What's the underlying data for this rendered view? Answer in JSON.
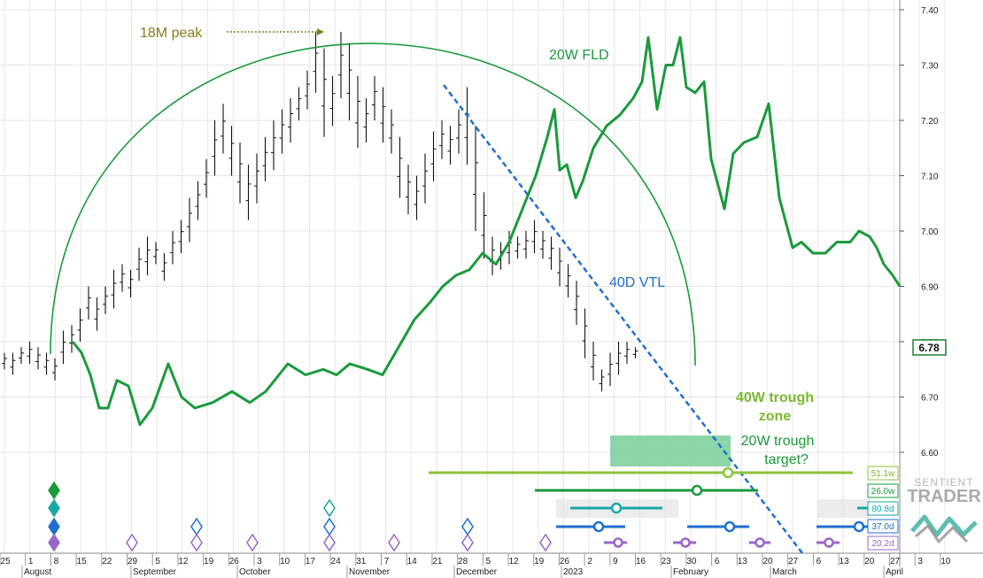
{
  "chart_data": {
    "type": "ohlc",
    "y_ticks": [
      "7.40",
      "7.30",
      "7.20",
      "7.10",
      "7.00",
      "6.90",
      "6.80",
      "6.70",
      "6.60"
    ],
    "ylim": [
      6.475,
      7.42
    ],
    "last_price_label": "6.78",
    "last_price": 6.78,
    "x_day_labels": [
      "25",
      "1",
      "8",
      "15",
      "22",
      "29",
      "5",
      "12",
      "19",
      "26",
      "3",
      "10",
      "17",
      "24",
      "31",
      "7",
      "14",
      "21",
      "28",
      "5",
      "12",
      "19",
      "26",
      "2",
      "9",
      "16",
      "23",
      "30",
      "6",
      "13",
      "20",
      "27",
      "6",
      "13",
      "20",
      "27",
      "3",
      "10"
    ],
    "months": [
      "August",
      "September",
      "October",
      "November",
      "December",
      "2023",
      "February",
      "March",
      "April"
    ],
    "price_bars": [
      [
        6.78,
        6.75
      ],
      [
        6.78,
        6.74
      ],
      [
        6.79,
        6.76
      ],
      [
        6.8,
        6.76
      ],
      [
        6.79,
        6.75
      ],
      [
        6.78,
        6.74
      ],
      [
        6.77,
        6.73
      ],
      [
        6.82,
        6.76
      ],
      [
        6.83,
        6.78
      ],
      [
        6.86,
        6.8
      ],
      [
        6.9,
        6.84
      ],
      [
        6.88,
        6.82
      ],
      [
        6.9,
        6.85
      ],
      [
        6.93,
        6.86
      ],
      [
        6.94,
        6.89
      ],
      [
        6.93,
        6.88
      ],
      [
        6.97,
        6.91
      ],
      [
        6.99,
        6.92
      ],
      [
        6.98,
        6.94
      ],
      [
        6.96,
        6.91
      ],
      [
        7.0,
        6.94
      ],
      [
        7.02,
        6.96
      ],
      [
        7.06,
        6.98
      ],
      [
        7.09,
        7.02
      ],
      [
        7.13,
        7.06
      ],
      [
        7.2,
        7.1
      ],
      [
        7.23,
        7.14
      ],
      [
        7.19,
        7.1
      ],
      [
        7.16,
        7.05
      ],
      [
        7.12,
        7.02
      ],
      [
        7.14,
        7.05
      ],
      [
        7.17,
        7.09
      ],
      [
        7.2,
        7.11
      ],
      [
        7.22,
        7.14
      ],
      [
        7.24,
        7.16
      ],
      [
        7.26,
        7.2
      ],
      [
        7.29,
        7.22
      ],
      [
        7.36,
        7.25
      ],
      [
        7.33,
        7.17
      ],
      [
        7.28,
        7.19
      ],
      [
        7.36,
        7.24
      ],
      [
        7.34,
        7.2
      ],
      [
        7.28,
        7.15
      ],
      [
        7.24,
        7.16
      ],
      [
        7.28,
        7.2
      ],
      [
        7.26,
        7.16
      ],
      [
        7.22,
        7.14
      ],
      [
        7.17,
        7.06
      ],
      [
        7.12,
        7.03
      ],
      [
        7.1,
        7.02
      ],
      [
        7.14,
        7.05
      ],
      [
        7.18,
        7.09
      ],
      [
        7.2,
        7.13
      ],
      [
        7.19,
        7.12
      ],
      [
        7.22,
        7.14
      ],
      [
        7.26,
        7.12
      ],
      [
        7.19,
        7.0
      ],
      [
        7.07,
        6.95
      ],
      [
        6.99,
        6.92
      ],
      [
        6.98,
        6.93
      ],
      [
        7.0,
        6.94
      ],
      [
        6.99,
        6.95
      ],
      [
        7.0,
        6.95
      ],
      [
        7.02,
        6.96
      ],
      [
        7.0,
        6.95
      ],
      [
        6.99,
        6.93
      ],
      [
        6.97,
        6.9
      ],
      [
        6.94,
        6.88
      ],
      [
        6.91,
        6.83
      ],
      [
        6.86,
        6.77
      ],
      [
        6.8,
        6.73
      ],
      [
        6.75,
        6.71
      ],
      [
        6.78,
        6.72
      ],
      [
        6.8,
        6.74
      ],
      [
        6.8,
        6.76
      ],
      [
        6.79,
        6.77
      ]
    ],
    "fld_20w": [
      [
        82,
        6.8
      ],
      [
        92,
        6.78
      ],
      [
        102,
        6.74
      ],
      [
        112,
        6.68
      ],
      [
        122,
        6.68
      ],
      [
        132,
        6.73
      ],
      [
        145,
        6.72
      ],
      [
        158,
        6.65
      ],
      [
        172,
        6.68
      ],
      [
        190,
        6.76
      ],
      [
        205,
        6.7
      ],
      [
        220,
        6.68
      ],
      [
        240,
        6.69
      ],
      [
        262,
        6.71
      ],
      [
        282,
        6.69
      ],
      [
        300,
        6.71
      ],
      [
        325,
        6.76
      ],
      [
        345,
        6.74
      ],
      [
        365,
        6.75
      ],
      [
        380,
        6.74
      ],
      [
        395,
        6.76
      ],
      [
        415,
        6.75
      ],
      [
        432,
        6.74
      ],
      [
        450,
        6.79
      ],
      [
        468,
        6.84
      ],
      [
        485,
        6.87
      ],
      [
        500,
        6.9
      ],
      [
        515,
        6.92
      ],
      [
        530,
        6.93
      ],
      [
        545,
        6.96
      ],
      [
        560,
        6.94
      ],
      [
        575,
        6.98
      ],
      [
        590,
        7.04
      ],
      [
        605,
        7.1
      ],
      [
        618,
        7.17
      ],
      [
        626,
        7.22
      ],
      [
        632,
        7.11
      ],
      [
        640,
        7.12
      ],
      [
        650,
        7.06
      ],
      [
        658,
        7.09
      ],
      [
        670,
        7.15
      ],
      [
        685,
        7.19
      ],
      [
        700,
        7.21
      ],
      [
        715,
        7.24
      ],
      [
        725,
        7.27
      ],
      [
        732,
        7.35
      ],
      [
        742,
        7.22
      ],
      [
        752,
        7.3
      ],
      [
        760,
        7.3
      ],
      [
        768,
        7.35
      ],
      [
        775,
        7.26
      ],
      [
        785,
        7.25
      ],
      [
        795,
        7.27
      ],
      [
        803,
        7.13
      ],
      [
        818,
        7.04
      ],
      [
        828,
        7.14
      ],
      [
        840,
        7.16
      ],
      [
        855,
        7.17
      ],
      [
        868,
        7.23
      ],
      [
        880,
        7.06
      ],
      [
        895,
        6.97
      ],
      [
        905,
        6.98
      ],
      [
        918,
        6.96
      ],
      [
        932,
        6.96
      ],
      [
        945,
        6.98
      ],
      [
        960,
        6.98
      ],
      [
        970,
        7.0
      ],
      [
        982,
        6.99
      ],
      [
        990,
        6.97
      ],
      [
        998,
        6.94
      ],
      [
        1008,
        6.92
      ],
      [
        1016,
        6.9
      ]
    ],
    "annotations": {
      "peak_18m": "18M peak",
      "fld_20w": "20W FLD",
      "vtl_40d": "40D VTL",
      "trough_40w_1": "40W trough",
      "trough_40w_2": "zone",
      "target_20w_1": "20W trough",
      "target_20w_2": "target?"
    },
    "cycle_labels": [
      "51.1w",
      "26.0w",
      "80.8d",
      "37.0d",
      "20.2d"
    ],
    "brand_1": "SENTIENT",
    "brand_2": "TRADER",
    "colors": {
      "fld": "#1a9a3c",
      "arc": "#1a9a3c",
      "vtl": "#1f6fd0",
      "peak_ann": "#8a7a1a",
      "trough_zone": "#7fd0a0",
      "cyc_51": "#8cc43c",
      "cyc_26": "#1a9a3c",
      "cyc_80": "#1aa6a6",
      "cyc_37": "#1f6fd0",
      "cyc_20": "#9966cc",
      "grid": "#e6e6e6",
      "bars": "#111111",
      "last_box": "#1a8030"
    }
  }
}
